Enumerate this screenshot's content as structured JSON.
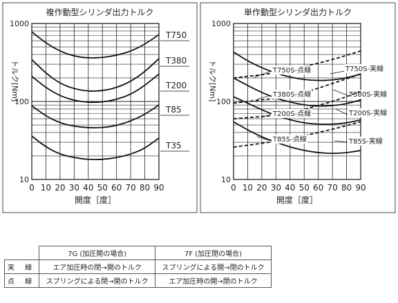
{
  "chart_data": [
    {
      "type": "line",
      "title": "複作動型シリンダ出力トルク",
      "xlabel": "開度［度］",
      "ylabel": "トルク[Nm]",
      "yscale": "log",
      "xlim": [
        0,
        90
      ],
      "ylim": [
        10,
        1000
      ],
      "x_ticks": [
        "0",
        "10",
        "20",
        "30",
        "40",
        "50",
        "60",
        "70",
        "80",
        "90"
      ],
      "y_ticks": [
        "10",
        "100",
        "1000"
      ],
      "grid": true,
      "series": [
        {
          "name": "T750",
          "style": "solid",
          "x": [
            0,
            10,
            20,
            30,
            40,
            50,
            60,
            70,
            80,
            90
          ],
          "y": [
            780,
            560,
            440,
            380,
            360,
            365,
            390,
            440,
            540,
            720
          ]
        },
        {
          "name": "T380",
          "style": "solid",
          "x": [
            0,
            10,
            20,
            30,
            40,
            50,
            60,
            70,
            80,
            90
          ],
          "y": [
            345,
            230,
            170,
            145,
            135,
            137,
            150,
            180,
            240,
            355
          ]
        },
        {
          "name": "T200",
          "style": "solid",
          "x": [
            0,
            10,
            20,
            30,
            40,
            50,
            60,
            70,
            80,
            90
          ],
          "y": [
            210,
            150,
            118,
            103,
            97,
            98,
            106,
            123,
            160,
            225
          ]
        },
        {
          "name": "T85",
          "style": "solid",
          "x": [
            0,
            10,
            20,
            30,
            40,
            50,
            60,
            70,
            80,
            90
          ],
          "y": [
            88,
            65,
            53,
            48,
            46,
            46,
            49,
            56,
            68,
            90
          ]
        },
        {
          "name": "T35",
          "style": "solid",
          "x": [
            0,
            10,
            20,
            30,
            40,
            50,
            60,
            70,
            80,
            90
          ],
          "y": [
            36,
            26,
            21,
            19,
            18,
            18,
            19,
            21,
            25,
            34
          ]
        }
      ]
    },
    {
      "type": "line",
      "title": "単作動型シリンダ出力トルク",
      "xlabel": "開度［度］",
      "ylabel": "トルク[Nm]",
      "yscale": "log",
      "xlim": [
        0,
        90
      ],
      "ylim": [
        10,
        1000
      ],
      "x_ticks": [
        "0",
        "10",
        "20",
        "30",
        "40",
        "50",
        "60",
        "70",
        "80",
        "90"
      ],
      "y_ticks": [
        "10",
        "100",
        "1000"
      ],
      "grid": true,
      "series": [
        {
          "name": "T750S-実線",
          "style": "solid",
          "x": [
            0,
            10,
            20,
            30,
            40,
            50,
            60,
            70,
            80,
            90
          ],
          "y": [
            430,
            330,
            270,
            230,
            205,
            190,
            185,
            188,
            200,
            225
          ]
        },
        {
          "name": "T750S-点線",
          "style": "dashed",
          "x": [
            0,
            10,
            20,
            30,
            40,
            50,
            60,
            70,
            80,
            90
          ],
          "y": [
            200,
            210,
            220,
            235,
            255,
            280,
            310,
            345,
            390,
            445
          ]
        },
        {
          "name": "T380S-実線",
          "style": "solid",
          "x": [
            0,
            10,
            20,
            30,
            40,
            50,
            60,
            70,
            80,
            90
          ],
          "y": [
            200,
            160,
            130,
            110,
            98,
            90,
            87,
            88,
            93,
            105
          ]
        },
        {
          "name": "T380S-点線",
          "style": "dashed",
          "x": [
            0,
            10,
            20,
            30,
            40,
            50,
            60,
            70,
            80,
            90
          ],
          "y": [
            95,
            100,
            105,
            110,
            118,
            130,
            148,
            170,
            195,
            225
          ]
        },
        {
          "name": "T200S-実線",
          "style": "solid",
          "x": [
            0,
            10,
            20,
            30,
            40,
            50,
            60,
            70,
            80,
            90
          ],
          "y": [
            115,
            95,
            78,
            66,
            58,
            53,
            51,
            51,
            53,
            58
          ]
        },
        {
          "name": "T200S-点線",
          "style": "dashed",
          "x": [
            0,
            10,
            20,
            30,
            40,
            50,
            60,
            70,
            80,
            90
          ],
          "y": [
            60,
            62,
            64,
            67,
            72,
            79,
            89,
            100,
            115,
            135
          ]
        },
        {
          "name": "T85S-実線",
          "style": "solid",
          "x": [
            0,
            10,
            20,
            30,
            40,
            50,
            60,
            70,
            80,
            90
          ],
          "y": [
            55,
            43,
            35,
            30,
            26,
            23.5,
            22,
            21.5,
            22,
            23.5
          ]
        },
        {
          "name": "T85S-点線",
          "style": "dashed",
          "x": [
            0,
            10,
            20,
            30,
            40,
            50,
            60,
            70,
            80,
            90
          ],
          "y": [
            26,
            27.5,
            29,
            31,
            33.5,
            36.5,
            40,
            44,
            49,
            55
          ]
        }
      ]
    }
  ],
  "legend_table": {
    "header": [
      "",
      "7G (加圧開の場合)",
      "7F (加圧閉の場合)"
    ],
    "rows": [
      [
        "実 線",
        "エア加圧時の閉→開のトルク",
        "スプリングによる開→閉のトルク"
      ],
      [
        "点 線",
        "スプリングによる閉→開のトルク",
        "エア加圧時の開→閉のトルク"
      ]
    ]
  }
}
